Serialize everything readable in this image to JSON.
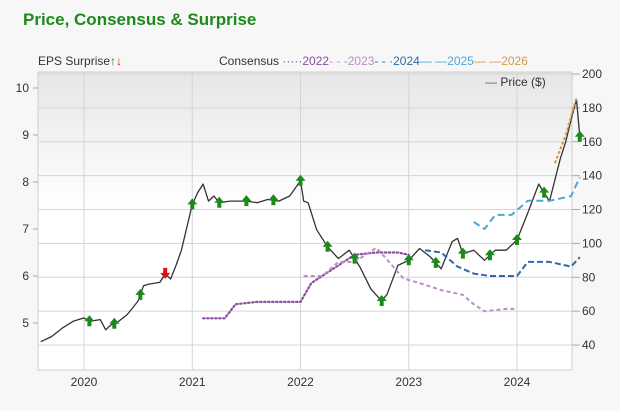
{
  "title": "Price, Consensus & Surprise",
  "legend": {
    "eps_surprise": "EPS Surprise",
    "eps_up_glyph": "🡑",
    "eps_down_glyph": "🡓",
    "consensus_label": "Consensus",
    "consensus_series": [
      {
        "label": "2022",
        "marker": "·····",
        "color": "#8a4fa0"
      },
      {
        "label": "2023",
        "marker": "- - -",
        "color": "#b98fc8"
      },
      {
        "label": "2024",
        "marker": "- - ·",
        "color": "#2f6aa8"
      },
      {
        "label": "2025",
        "marker": "— —",
        "color": "#4aa8d8"
      },
      {
        "label": "2026",
        "marker": "— —",
        "color": "#d49a4a"
      }
    ],
    "price_label": "Price ($)",
    "price_marker": "—"
  },
  "colors": {
    "title": "#1e8a1e",
    "price_line": "#333333",
    "surprise_up": "#1a8a1a",
    "surprise_down": "#e01010",
    "grid": "#cccccc"
  },
  "chart_data": {
    "type": "line",
    "title": "Price, Consensus & Surprise",
    "x_ticks": [
      "2020",
      "2021",
      "2022",
      "2023",
      "2024"
    ],
    "left_axis": {
      "label": "EPS Surprise",
      "ticks": [
        5,
        6,
        7,
        8,
        9,
        10
      ],
      "range": [
        4.5,
        10.3
      ]
    },
    "right_axis": {
      "label": "Price ($)",
      "ticks": [
        40,
        60,
        80,
        100,
        120,
        140,
        160,
        180,
        200
      ],
      "range": [
        35,
        200
      ]
    },
    "grid": true,
    "legend_position": "top",
    "series": [
      {
        "name": "Price ($)",
        "axis": "right",
        "x": [
          2019.6,
          2019.7,
          2019.8,
          2019.9,
          2020.0,
          2020.05,
          2020.15,
          2020.2,
          2020.25,
          2020.3,
          2020.4,
          2020.5,
          2020.55,
          2020.6,
          2020.7,
          2020.75,
          2020.8,
          2020.85,
          2020.9,
          2021.0,
          2021.05,
          2021.1,
          2021.15,
          2021.2,
          2021.25,
          2021.35,
          2021.5,
          2021.6,
          2021.7,
          2021.8,
          2021.9,
          2022.0,
          2022.03,
          2022.07,
          2022.15,
          2022.25,
          2022.35,
          2022.45,
          2022.55,
          2022.65,
          2022.75,
          2022.8,
          2022.9,
          2023.0,
          2023.1,
          2023.2,
          2023.3,
          2023.4,
          2023.45,
          2023.5,
          2023.6,
          2023.7,
          2023.8,
          2023.9,
          2024.0,
          2024.1,
          2024.2,
          2024.25,
          2024.3,
          2024.4,
          2024.45,
          2024.5,
          2024.55,
          2024.58
        ],
        "values": [
          42,
          45,
          50,
          54,
          56,
          54,
          55,
          49,
          52,
          53,
          58,
          66,
          75,
          76,
          77,
          82,
          79,
          87,
          96,
          123,
          130,
          135,
          125,
          128,
          124,
          125,
          125,
          124,
          126,
          125,
          128,
          137,
          125,
          124,
          108,
          98,
          91,
          96,
          86,
          73,
          66,
          70,
          87,
          90,
          97,
          92,
          85,
          101,
          103,
          94,
          96,
          90,
          96,
          96,
          102,
          118,
          135,
          130,
          125,
          150,
          160,
          173,
          185,
          163
        ]
      },
      {
        "name": "Consensus 2022",
        "axis": "left",
        "x": [
          2021.1,
          2021.3,
          2021.4,
          2021.6,
          2021.8,
          2022.0,
          2022.1,
          2022.3,
          2022.5,
          2022.7,
          2022.9,
          2023.0
        ],
        "values": [
          5.1,
          5.1,
          5.4,
          5.45,
          5.45,
          5.45,
          5.85,
          6.15,
          6.45,
          6.5,
          6.5,
          6.45
        ]
      },
      {
        "name": "Consensus 2023",
        "axis": "left",
        "x": [
          2022.03,
          2022.2,
          2022.35,
          2022.5,
          2022.7,
          2022.8,
          2022.95,
          2023.1,
          2023.3,
          2023.5,
          2023.6,
          2023.7,
          2023.9,
          2024.0
        ],
        "values": [
          6.0,
          6.0,
          6.3,
          6.3,
          6.6,
          6.35,
          5.95,
          5.85,
          5.7,
          5.6,
          5.4,
          5.25,
          5.3,
          5.3
        ]
      },
      {
        "name": "Consensus 2024",
        "axis": "left",
        "x": [
          2023.15,
          2023.3,
          2023.45,
          2023.6,
          2023.75,
          2023.9,
          2024.0,
          2024.1,
          2024.3,
          2024.5,
          2024.58
        ],
        "values": [
          6.55,
          6.5,
          6.2,
          6.05,
          6.0,
          6.0,
          6.0,
          6.3,
          6.3,
          6.2,
          6.4
        ]
      },
      {
        "name": "Consensus 2025",
        "axis": "left",
        "x": [
          2023.6,
          2023.7,
          2023.8,
          2023.95,
          2024.1,
          2024.3,
          2024.5,
          2024.58
        ],
        "values": [
          7.15,
          7.0,
          7.3,
          7.3,
          7.6,
          7.6,
          7.7,
          8.1
        ]
      },
      {
        "name": "Consensus 2026",
        "axis": "left",
        "x": [
          2024.35,
          2024.45,
          2024.55
        ],
        "values": [
          8.4,
          9.0,
          9.8
        ]
      }
    ],
    "surprises": [
      {
        "x": 2020.05,
        "direction": "up"
      },
      {
        "x": 2020.28,
        "direction": "up"
      },
      {
        "x": 2020.52,
        "direction": "up"
      },
      {
        "x": 2020.75,
        "direction": "down"
      },
      {
        "x": 2021.0,
        "direction": "up"
      },
      {
        "x": 2021.25,
        "direction": "up"
      },
      {
        "x": 2021.5,
        "direction": "up"
      },
      {
        "x": 2021.75,
        "direction": "up"
      },
      {
        "x": 2022.0,
        "direction": "up"
      },
      {
        "x": 2022.25,
        "direction": "up"
      },
      {
        "x": 2022.5,
        "direction": "up"
      },
      {
        "x": 2022.75,
        "direction": "up"
      },
      {
        "x": 2023.0,
        "direction": "up"
      },
      {
        "x": 2023.25,
        "direction": "up"
      },
      {
        "x": 2023.5,
        "direction": "up"
      },
      {
        "x": 2023.75,
        "direction": "up"
      },
      {
        "x": 2024.0,
        "direction": "up"
      },
      {
        "x": 2024.25,
        "direction": "up"
      },
      {
        "x": 2024.58,
        "direction": "up"
      }
    ]
  }
}
